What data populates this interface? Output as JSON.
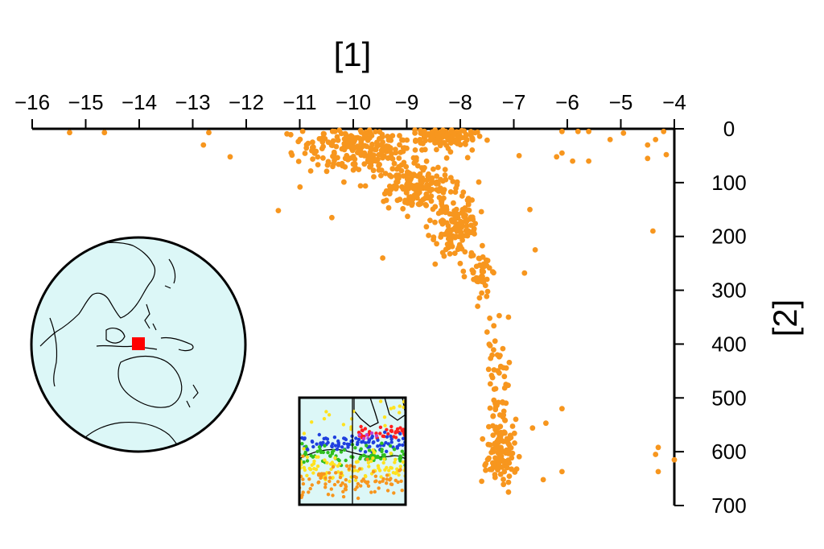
{
  "chart_data": {
    "type": "scatter",
    "title": "",
    "xlabel": "[1]",
    "ylabel": "[2]",
    "x_axis_position": "top",
    "y_axis_position": "right",
    "y_inverted": true,
    "xlim": [
      -16,
      -4
    ],
    "ylim": [
      0,
      700
    ],
    "x_ticks": [
      "−16",
      "−15",
      "−14",
      "−13",
      "−12",
      "−11",
      "−10",
      "−9",
      "−8",
      "−7",
      "−6",
      "−5",
      "−4"
    ],
    "y_ticks": [
      "0",
      "100",
      "200",
      "300",
      "400",
      "500",
      "600",
      "700"
    ],
    "grid": false,
    "legend": "none",
    "point_color": "#f7961e",
    "series": [
      {
        "clusters": [
          {
            "center": [
              -9.9,
              40
            ],
            "spread": [
              0.55,
              25
            ],
            "count": 220
          },
          {
            "center": [
              -8.3,
              15
            ],
            "spread": [
              0.3,
              12
            ],
            "count": 110
          },
          {
            "center": [
              -8.8,
              110
            ],
            "spread": [
              0.35,
              25
            ],
            "count": 170
          },
          {
            "center": [
              -8.1,
              180
            ],
            "spread": [
              0.22,
              30
            ],
            "count": 130
          },
          {
            "center": [
              -7.6,
              270
            ],
            "spread": [
              0.12,
              28
            ],
            "count": 45
          },
          {
            "center": [
              -7.3,
              420
            ],
            "spread": [
              0.12,
              25
            ],
            "count": 22
          },
          {
            "center": [
              -7.25,
              510
            ],
            "spread": [
              0.1,
              25
            ],
            "count": 25
          },
          {
            "center": [
              -7.25,
              590
            ],
            "spread": [
              0.15,
              30
            ],
            "count": 110
          }
        ],
        "points": [
          [
            -15.3,
            7
          ],
          [
            -14.65,
            7
          ],
          [
            -12.7,
            7
          ],
          [
            -12.8,
            30
          ],
          [
            -12.3,
            52
          ],
          [
            -11.4,
            152
          ],
          [
            -10.4,
            165
          ],
          [
            -9.45,
            240
          ],
          [
            -6.9,
            50
          ],
          [
            -6.7,
            150
          ],
          [
            -6.6,
            225
          ],
          [
            -6.8,
            268
          ],
          [
            -6.1,
            45
          ],
          [
            -6.2,
            52
          ],
          [
            -5.9,
            60
          ],
          [
            -5.6,
            60
          ],
          [
            -6.1,
            5
          ],
          [
            -5.6,
            5
          ],
          [
            -5.8,
            5
          ],
          [
            -5.2,
            20
          ],
          [
            -4.95,
            8
          ],
          [
            -4.35,
            20
          ],
          [
            -4.5,
            30
          ],
          [
            -4.2,
            5
          ],
          [
            -4.15,
            48
          ],
          [
            -4.5,
            55
          ],
          [
            -4.4,
            190
          ],
          [
            -6.4,
            547
          ],
          [
            -6.65,
            556
          ],
          [
            -6.1,
            520
          ],
          [
            -6.1,
            637
          ],
          [
            -6.45,
            652
          ],
          [
            -4.3,
            592
          ],
          [
            -4.35,
            605
          ],
          [
            -4.0,
            615
          ],
          [
            -4.3,
            637
          ],
          [
            -7.1,
            675
          ],
          [
            -7.6,
            655
          ],
          [
            -7.45,
            352
          ],
          [
            -7.1,
            350
          ]
        ]
      }
    ]
  },
  "globe": {
    "ocean_color": "#dcf7f7",
    "marker_color": "#ff0000"
  },
  "inset_map": {
    "background": "#dcf7f7",
    "dot_colors": [
      "#ff1f1f",
      "#1f3fdf",
      "#2fbf1f",
      "#ffe21f",
      "#f7961e",
      "#c03fd0"
    ]
  }
}
